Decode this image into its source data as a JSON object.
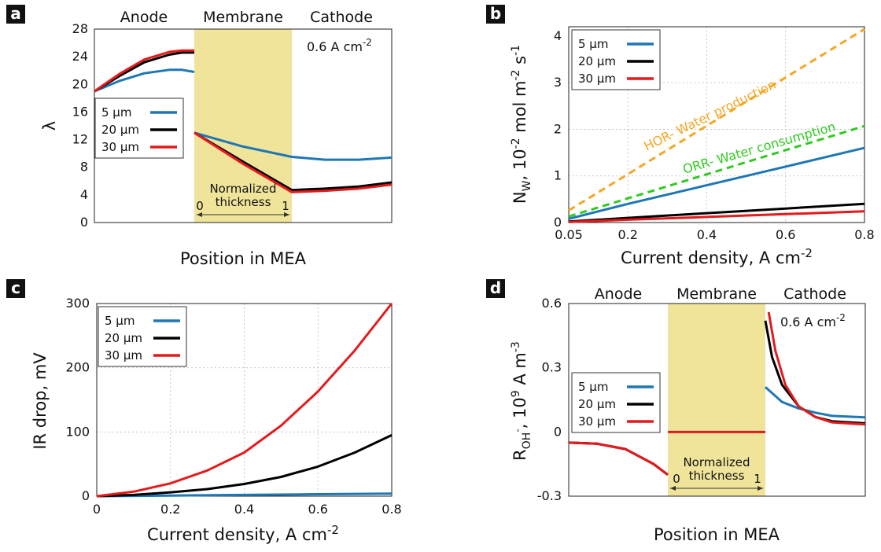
{
  "colors": {
    "s5": "#1f77b4",
    "s20": "#000000",
    "s30": "#e41a1c",
    "membrane": "#efe49a",
    "hor": "#f5a623",
    "orr": "#2ecc1f"
  },
  "chart_data": [
    {
      "panel": "a",
      "type": "line",
      "xlabel": "Position in MEA",
      "ylabel": "λ",
      "ylim": [
        0,
        28
      ],
      "yticks": [
        "0",
        "4",
        "8",
        "12",
        "16",
        "20",
        "24",
        "28"
      ],
      "regions": [
        "Anode",
        "Membrane",
        "Cathode"
      ],
      "annotation": "0.6 A cm",
      "annotation_sup": "-2",
      "membrane_axis": {
        "label_line1": "Normalized",
        "label_line2": "thickness",
        "start": "0",
        "end": "1"
      },
      "series": [
        {
          "name": "5   μm",
          "color": "#1f77b4",
          "x": [
            0,
            0.1,
            0.2,
            0.3,
            0.35,
            0.4,
            0.5,
            0.6,
            0.7,
            0.8,
            0.9,
            1.0
          ],
          "y": [
            19,
            20.5,
            21.6,
            22.1,
            22.1,
            21.8,
            13,
            11,
            9.5,
            9.1,
            9.1,
            9.4
          ]
        },
        {
          "name": "20 μm",
          "color": "#000000",
          "x": [
            0,
            0.1,
            0.2,
            0.3,
            0.35,
            0.4,
            0.5,
            0.6,
            0.7,
            0.8,
            0.9,
            1.0
          ],
          "y": [
            19,
            21.2,
            23.2,
            24.3,
            24.6,
            24.6,
            13,
            8.8,
            4.7,
            4.9,
            5.2,
            5.8
          ]
        },
        {
          "name": "30 μm",
          "color": "#e41a1c",
          "x": [
            0,
            0.1,
            0.2,
            0.3,
            0.35,
            0.4,
            0.5,
            0.6,
            0.7,
            0.8,
            0.9,
            1.0
          ],
          "y": [
            19,
            21.5,
            23.6,
            24.7,
            24.9,
            24.9,
            13,
            8.5,
            4.4,
            4.6,
            4.9,
            5.5
          ]
        }
      ]
    },
    {
      "panel": "b",
      "type": "line",
      "xlabel": "Current density, A cm",
      "xlabel_sup": "-2",
      "ylabel": "N",
      "ylabel_sub": "W",
      "ylabel_rest": ", 10",
      "ylabel_sup1": "-2",
      "ylabel_rest2": " mol m",
      "ylabel_sup2": "-2",
      "ylabel_rest3": " s",
      "ylabel_sup3": "-1",
      "xlim": [
        0.05,
        0.8
      ],
      "ylim": [
        0,
        4.2
      ],
      "xticks": [
        "0.05",
        "0.2",
        "0.4",
        "0.6",
        "0.8"
      ],
      "yticks": [
        "0",
        "1",
        "2",
        "3",
        "4"
      ],
      "series": [
        {
          "name": "5   μm",
          "color": "#1f77b4",
          "x": [
            0.05,
            0.2,
            0.4,
            0.6,
            0.8
          ],
          "y": [
            0.08,
            0.4,
            0.8,
            1.2,
            1.6
          ]
        },
        {
          "name": "20 μm",
          "color": "#000000",
          "x": [
            0.05,
            0.2,
            0.4,
            0.6,
            0.8
          ],
          "y": [
            0.02,
            0.1,
            0.2,
            0.3,
            0.4
          ]
        },
        {
          "name": "30 μm",
          "color": "#e41a1c",
          "x": [
            0.05,
            0.2,
            0.4,
            0.6,
            0.8
          ],
          "y": [
            0.01,
            0.06,
            0.12,
            0.18,
            0.24
          ]
        }
      ],
      "reference_lines": [
        {
          "label": "HOR- Water production",
          "color": "#f5a623",
          "x": [
            0.05,
            0.8
          ],
          "y": [
            0.26,
            4.15
          ]
        },
        {
          "label": "ORR- Water consumption",
          "color": "#2ecc1f",
          "x": [
            0.05,
            0.8
          ],
          "y": [
            0.13,
            2.07
          ]
        }
      ]
    },
    {
      "panel": "c",
      "type": "line",
      "xlabel": "Current density, A cm",
      "xlabel_sup": "-2",
      "ylabel": "IR drop, mV",
      "xlim": [
        0,
        0.8
      ],
      "ylim": [
        0,
        300
      ],
      "xticks": [
        "0",
        "0.2",
        "0.4",
        "0.6",
        "0.8"
      ],
      "yticks": [
        "0",
        "100",
        "200",
        "300"
      ],
      "series": [
        {
          "name": "5   μm",
          "color": "#1f77b4",
          "x": [
            0,
            0.2,
            0.4,
            0.6,
            0.8
          ],
          "y": [
            0,
            1,
            2,
            3,
            4
          ]
        },
        {
          "name": "20 μm",
          "color": "#000000",
          "x": [
            0,
            0.1,
            0.2,
            0.3,
            0.4,
            0.5,
            0.6,
            0.7,
            0.8
          ],
          "y": [
            0,
            2,
            6,
            11,
            19,
            30,
            46,
            68,
            95
          ]
        },
        {
          "name": "30 μm",
          "color": "#e41a1c",
          "x": [
            0,
            0.1,
            0.2,
            0.3,
            0.4,
            0.5,
            0.6,
            0.7,
            0.8
          ],
          "y": [
            0,
            7,
            20,
            40,
            68,
            110,
            163,
            227,
            300
          ]
        }
      ]
    },
    {
      "panel": "d",
      "type": "line",
      "xlabel": "Position in MEA",
      "ylabel": "R",
      "ylabel_sub": "OH",
      "ylabel_subsup": "-",
      "ylabel_rest": ", 10",
      "ylabel_sup1": "9",
      "ylabel_rest2": " A m",
      "ylabel_sup2": "-3",
      "ylim": [
        -0.3,
        0.6
      ],
      "yticks": [
        "-0.3",
        "0",
        "0.3",
        "0.6"
      ],
      "regions": [
        "Anode",
        "Membrane",
        "Cathode"
      ],
      "annotation": "0.6 A cm",
      "annotation_sup": "-2",
      "membrane_axis": {
        "label_line1": "Normalized",
        "label_line2": "thickness",
        "start": "0",
        "end": "1"
      },
      "series": [
        {
          "name": "5   μm",
          "color": "#1f77b4",
          "x": [
            0,
            0.1,
            0.2,
            0.3,
            0.35,
            0.7,
            0.75,
            0.8,
            0.85,
            0.9,
            1.0
          ],
          "y": [
            -0.05,
            -0.055,
            -0.08,
            -0.15,
            -0.2,
            0.21,
            0.14,
            0.11,
            0.09,
            0.075,
            0.068
          ]
        },
        {
          "name": "20 μm",
          "color": "#000000",
          "x": [
            0,
            0.1,
            0.2,
            0.3,
            0.35,
            0.7,
            0.72,
            0.75,
            0.8,
            0.85,
            0.9,
            1.0
          ],
          "y": [
            -0.05,
            -0.055,
            -0.08,
            -0.15,
            -0.2,
            0.52,
            0.35,
            0.22,
            0.12,
            0.07,
            0.05,
            0.04
          ]
        },
        {
          "name": "30 μm",
          "color": "#e41a1c",
          "x": [
            0,
            0.1,
            0.2,
            0.3,
            0.35,
            0.71,
            0.73,
            0.76,
            0.8,
            0.85,
            0.9,
            1.0
          ],
          "y": [
            -0.05,
            -0.055,
            -0.08,
            -0.15,
            -0.2,
            0.56,
            0.38,
            0.22,
            0.12,
            0.07,
            0.045,
            0.035
          ],
          "membrane_value": 0
        }
      ]
    }
  ]
}
